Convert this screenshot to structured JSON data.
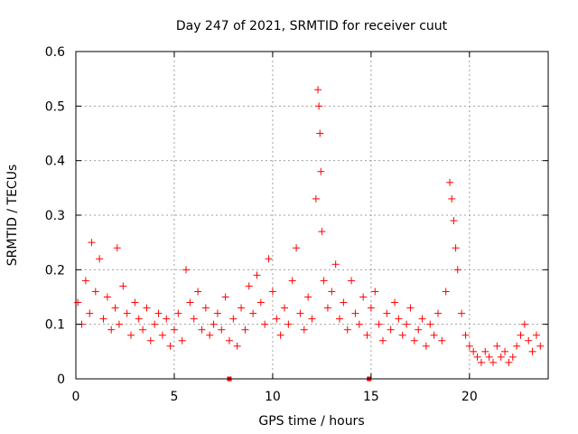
{
  "chart_data": {
    "type": "scatter",
    "title": "Day 247 of 2021, SRMTID for receiver cuut",
    "xlabel": "GPS time / hours",
    "ylabel": "SRMTID / TECUs",
    "xlim": [
      0,
      24
    ],
    "ylim": [
      0,
      0.6
    ],
    "x_ticks": [
      0,
      5,
      10,
      15,
      20
    ],
    "y_ticks": [
      0,
      0.1,
      0.2,
      0.3,
      0.4,
      0.5,
      0.6
    ],
    "x_tick_labels": [
      "0",
      "5",
      "10",
      "15",
      "20"
    ],
    "y_tick_labels": [
      "0",
      "0.1",
      "0.2",
      "0.3",
      "0.4",
      "0.5",
      "0.6"
    ],
    "grid": true,
    "marker": "plus",
    "series_color": "#ff0000",
    "baseline_markers_x": [
      7.8,
      14.9
    ],
    "points": {
      "x": [
        0.1,
        0.3,
        0.5,
        0.7,
        0.8,
        1.0,
        1.2,
        1.4,
        1.6,
        1.8,
        2.0,
        2.1,
        2.2,
        2.4,
        2.6,
        2.8,
        3.0,
        3.2,
        3.4,
        3.6,
        3.8,
        4.0,
        4.2,
        4.4,
        4.6,
        4.8,
        5.0,
        5.2,
        5.4,
        5.6,
        5.8,
        6.0,
        6.2,
        6.4,
        6.6,
        6.8,
        7.0,
        7.2,
        7.4,
        7.6,
        7.8,
        8.0,
        8.2,
        8.4,
        8.6,
        8.8,
        9.0,
        9.2,
        9.4,
        9.6,
        9.8,
        10.0,
        10.2,
        10.4,
        10.6,
        10.8,
        11.0,
        11.2,
        11.4,
        11.6,
        11.8,
        12.0,
        12.2,
        12.3,
        12.35,
        12.4,
        12.45,
        12.5,
        12.6,
        12.8,
        13.0,
        13.2,
        13.4,
        13.6,
        13.8,
        14.0,
        14.2,
        14.4,
        14.6,
        14.8,
        15.0,
        15.2,
        15.4,
        15.6,
        15.8,
        16.0,
        16.2,
        16.4,
        16.6,
        16.8,
        17.0,
        17.2,
        17.4,
        17.6,
        17.8,
        18.0,
        18.2,
        18.4,
        18.6,
        18.8,
        19.0,
        19.1,
        19.2,
        19.3,
        19.4,
        19.6,
        19.8,
        20.0,
        20.2,
        20.4,
        20.6,
        20.8,
        21.0,
        21.2,
        21.4,
        21.6,
        21.8,
        22.0,
        22.2,
        22.4,
        22.6,
        22.8,
        23.0,
        23.2,
        23.4,
        23.6
      ],
      "y": [
        0.14,
        0.1,
        0.18,
        0.12,
        0.25,
        0.16,
        0.22,
        0.11,
        0.15,
        0.09,
        0.13,
        0.24,
        0.1,
        0.17,
        0.12,
        0.08,
        0.14,
        0.11,
        0.09,
        0.13,
        0.07,
        0.1,
        0.12,
        0.08,
        0.11,
        0.06,
        0.09,
        0.12,
        0.07,
        0.2,
        0.14,
        0.11,
        0.16,
        0.09,
        0.13,
        0.08,
        0.1,
        0.12,
        0.09,
        0.15,
        0.07,
        0.11,
        0.06,
        0.13,
        0.09,
        0.17,
        0.12,
        0.19,
        0.14,
        0.1,
        0.22,
        0.16,
        0.11,
        0.08,
        0.13,
        0.1,
        0.18,
        0.24,
        0.12,
        0.09,
        0.15,
        0.11,
        0.33,
        0.53,
        0.5,
        0.45,
        0.38,
        0.27,
        0.18,
        0.13,
        0.16,
        0.21,
        0.11,
        0.14,
        0.09,
        0.18,
        0.12,
        0.1,
        0.15,
        0.08,
        0.13,
        0.16,
        0.1,
        0.07,
        0.12,
        0.09,
        0.14,
        0.11,
        0.08,
        0.1,
        0.13,
        0.07,
        0.09,
        0.11,
        0.06,
        0.1,
        0.08,
        0.12,
        0.07,
        0.16,
        0.36,
        0.33,
        0.29,
        0.24,
        0.2,
        0.12,
        0.08,
        0.06,
        0.05,
        0.04,
        0.03,
        0.05,
        0.04,
        0.03,
        0.06,
        0.04,
        0.05,
        0.03,
        0.04,
        0.06,
        0.08,
        0.1,
        0.07,
        0.05,
        0.08,
        0.06
      ]
    }
  }
}
